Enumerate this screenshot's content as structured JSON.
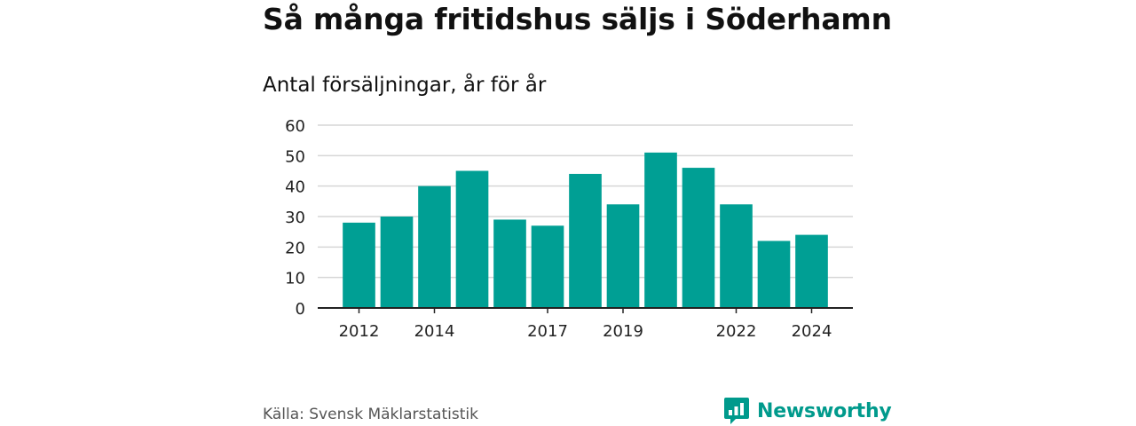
{
  "header": {
    "title": "Så många fritidshus säljs i Söderhamn",
    "subtitle": "Antal försäljningar, år för år"
  },
  "footer": {
    "source": "Källa: Svensk Mäklarstatistik",
    "brand": "Newsworthy"
  },
  "colors": {
    "bar": "#009f94",
    "brand": "#009a8c",
    "grid": "#d6d6d6",
    "axis": "#222222"
  },
  "chart_data": {
    "type": "bar",
    "categories": [
      "2012",
      "2013",
      "2014",
      "2015",
      "2016",
      "2017",
      "2018",
      "2019",
      "2020",
      "2021",
      "2022",
      "2023",
      "2024"
    ],
    "tick_labels": [
      "2012",
      "",
      "2014",
      "",
      "",
      "2017",
      "",
      "2019",
      "",
      "",
      "2022",
      "",
      "2024"
    ],
    "values": [
      28,
      30,
      40,
      45,
      29,
      27,
      44,
      34,
      51,
      46,
      34,
      22,
      24
    ],
    "yticks": [
      0,
      10,
      20,
      30,
      40,
      50,
      60
    ],
    "ylim": [
      0,
      60
    ],
    "grid": true
  }
}
